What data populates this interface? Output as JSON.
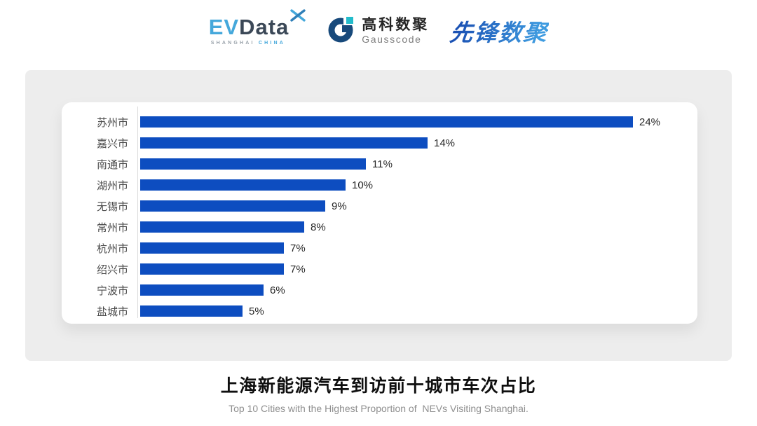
{
  "header": {
    "evdata": {
      "part_ev": "EV",
      "part_data": "Data",
      "sub_shanghai": "SHANGHAI",
      "sub_china": "CHINA",
      "accent_color": "#45A8DB",
      "dark_color": "#3B4857"
    },
    "gausscode": {
      "cn_name": "高科数聚",
      "en_name": "Gausscode",
      "icon_dark_color": "#17497B",
      "icon_teal_color": "#23BCCB"
    },
    "pioneer": {
      "text": "先锋数聚",
      "color_start": "#1B52B4",
      "color_end": "#3E9BE0"
    }
  },
  "chart_data": {
    "type": "bar",
    "orientation": "horizontal",
    "title": "上海新能源汽车到访前十城市车次占比",
    "categories": [
      "苏州市",
      "嘉兴市",
      "南通市",
      "湖州市",
      "无锡市",
      "常州市",
      "杭州市",
      "绍兴市",
      "宁波市",
      "盐城市"
    ],
    "values": [
      24,
      14,
      11,
      10,
      9,
      8,
      7,
      7,
      6,
      5
    ],
    "value_labels": [
      "24%",
      "14%",
      "11%",
      "10%",
      "9%",
      "8%",
      "7%",
      "7%",
      "6%",
      "5%"
    ],
    "unit": "%",
    "xlim": [
      0,
      24
    ],
    "grid": false,
    "legend": "none",
    "bar_color": "#0D4DC0",
    "value_label_position": "right-of-bar"
  },
  "footer": {
    "title": "上海新能源汽车到访前十城市车次占比",
    "subtitle": "Top 10 Cities with the Highest Proportion of  NEVs Visiting Shanghai."
  }
}
